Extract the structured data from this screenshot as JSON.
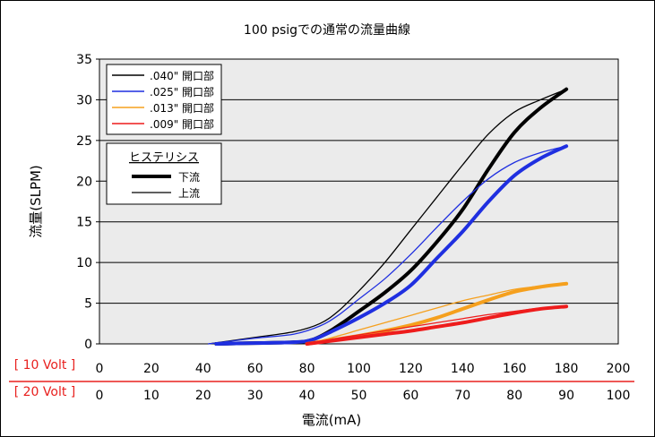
{
  "chart_data": {
    "type": "line",
    "title": "100 psigでの通常の流量曲線",
    "xlabel": "電流(mA)",
    "ylabel": "流量(SLPM)",
    "ylim": [
      0,
      35
    ],
    "xlim": [
      0,
      200
    ],
    "y_ticks": [
      "0",
      "5",
      "10",
      "15",
      "20",
      "25",
      "30",
      "35"
    ],
    "x_axes": [
      {
        "label": "[ 10 Volt ]",
        "ticks": [
          "0",
          "20",
          "40",
          "60",
          "80",
          "100",
          "120",
          "140",
          "160",
          "180",
          "200"
        ]
      },
      {
        "label": "[ 20 Volt ]",
        "ticks": [
          "0",
          "10",
          "20",
          "30",
          "40",
          "50",
          "60",
          "70",
          "80",
          "90",
          "100"
        ]
      }
    ],
    "grid": true,
    "legend_position": "top-left",
    "legend": [
      {
        "name": ".040\" 開口部",
        "color": "#000000"
      },
      {
        "name": ".025\" 開口部",
        "color": "#1f2fe0"
      },
      {
        "name": ".013\" 開口部",
        "color": "#f5a01e"
      },
      {
        "name": ".009\" 開口部",
        "color": "#ee1c1c"
      }
    ],
    "hysteresis_legend": {
      "title": "ヒステリシス",
      "items": [
        {
          "name": "下流",
          "style": "thick"
        },
        {
          "name": "上流",
          "style": "thin"
        }
      ]
    },
    "series": [
      {
        "name": ".040\" 開口部 下流",
        "color": "#000000",
        "style": "thick",
        "x": [
          45,
          60,
          75,
          82,
          90,
          100,
          110,
          120,
          130,
          140,
          150,
          160,
          170,
          180
        ],
        "y": [
          0,
          0.1,
          0.2,
          0.5,
          1.8,
          4.0,
          6.3,
          9.0,
          12.5,
          16.5,
          21.5,
          26.0,
          29.0,
          31.3
        ]
      },
      {
        "name": ".040\" 開口部 上流",
        "color": "#000000",
        "style": "thin",
        "x": [
          42,
          60,
          75,
          85,
          92,
          100,
          110,
          120,
          130,
          140,
          150,
          160,
          170,
          180
        ],
        "y": [
          0,
          0.8,
          1.5,
          2.5,
          4.0,
          6.5,
          10.0,
          14.0,
          18.0,
          22.0,
          25.8,
          28.5,
          30.0,
          31.3
        ]
      },
      {
        "name": ".025\" 開口部 下流",
        "color": "#1f2fe0",
        "style": "thick",
        "x": [
          45,
          60,
          75,
          82,
          90,
          100,
          110,
          120,
          130,
          140,
          150,
          160,
          170,
          180
        ],
        "y": [
          0,
          0.1,
          0.2,
          0.5,
          1.6,
          3.2,
          5.0,
          7.2,
          10.5,
          13.8,
          17.5,
          20.7,
          22.8,
          24.3
        ]
      },
      {
        "name": ".025\" 開口部 上流",
        "color": "#1f2fe0",
        "style": "thin",
        "x": [
          42,
          60,
          75,
          85,
          92,
          100,
          110,
          120,
          130,
          140,
          150,
          160,
          170,
          180
        ],
        "y": [
          0,
          0.7,
          1.2,
          2.2,
          3.5,
          5.5,
          8.0,
          11.0,
          14.3,
          17.5,
          20.3,
          22.3,
          23.5,
          24.3
        ]
      },
      {
        "name": ".013\" 開口部 下流",
        "color": "#f5a01e",
        "style": "thick",
        "x": [
          80,
          90,
          100,
          110,
          120,
          130,
          140,
          150,
          160,
          170,
          180
        ],
        "y": [
          0,
          0.5,
          1.0,
          1.6,
          2.3,
          3.2,
          4.3,
          5.4,
          6.4,
          7.0,
          7.4
        ]
      },
      {
        "name": ".013\" 開口部 上流",
        "color": "#f5a01e",
        "style": "thin",
        "x": [
          80,
          90,
          100,
          110,
          120,
          130,
          140,
          150,
          160,
          170,
          180
        ],
        "y": [
          0,
          0.8,
          1.7,
          2.6,
          3.5,
          4.4,
          5.3,
          6.0,
          6.7,
          7.1,
          7.4
        ]
      },
      {
        "name": ".009\" 開口部 下流",
        "color": "#ee1c1c",
        "style": "thick",
        "x": [
          80,
          90,
          100,
          110,
          120,
          130,
          140,
          150,
          160,
          170,
          180
        ],
        "y": [
          0,
          0.4,
          0.8,
          1.2,
          1.6,
          2.1,
          2.6,
          3.2,
          3.8,
          4.3,
          4.6
        ]
      },
      {
        "name": ".009\" 開口部 上流",
        "color": "#ee1c1c",
        "style": "thin",
        "x": [
          80,
          90,
          100,
          110,
          120,
          130,
          140,
          150,
          160,
          170,
          180
        ],
        "y": [
          0,
          0.6,
          1.1,
          1.6,
          2.1,
          2.6,
          3.1,
          3.6,
          4.0,
          4.4,
          4.6
        ]
      }
    ],
    "colors": {
      "plot_bg": "#ebebeb",
      "volt_label": "#e8201e",
      "separator": "#e8201e"
    }
  }
}
